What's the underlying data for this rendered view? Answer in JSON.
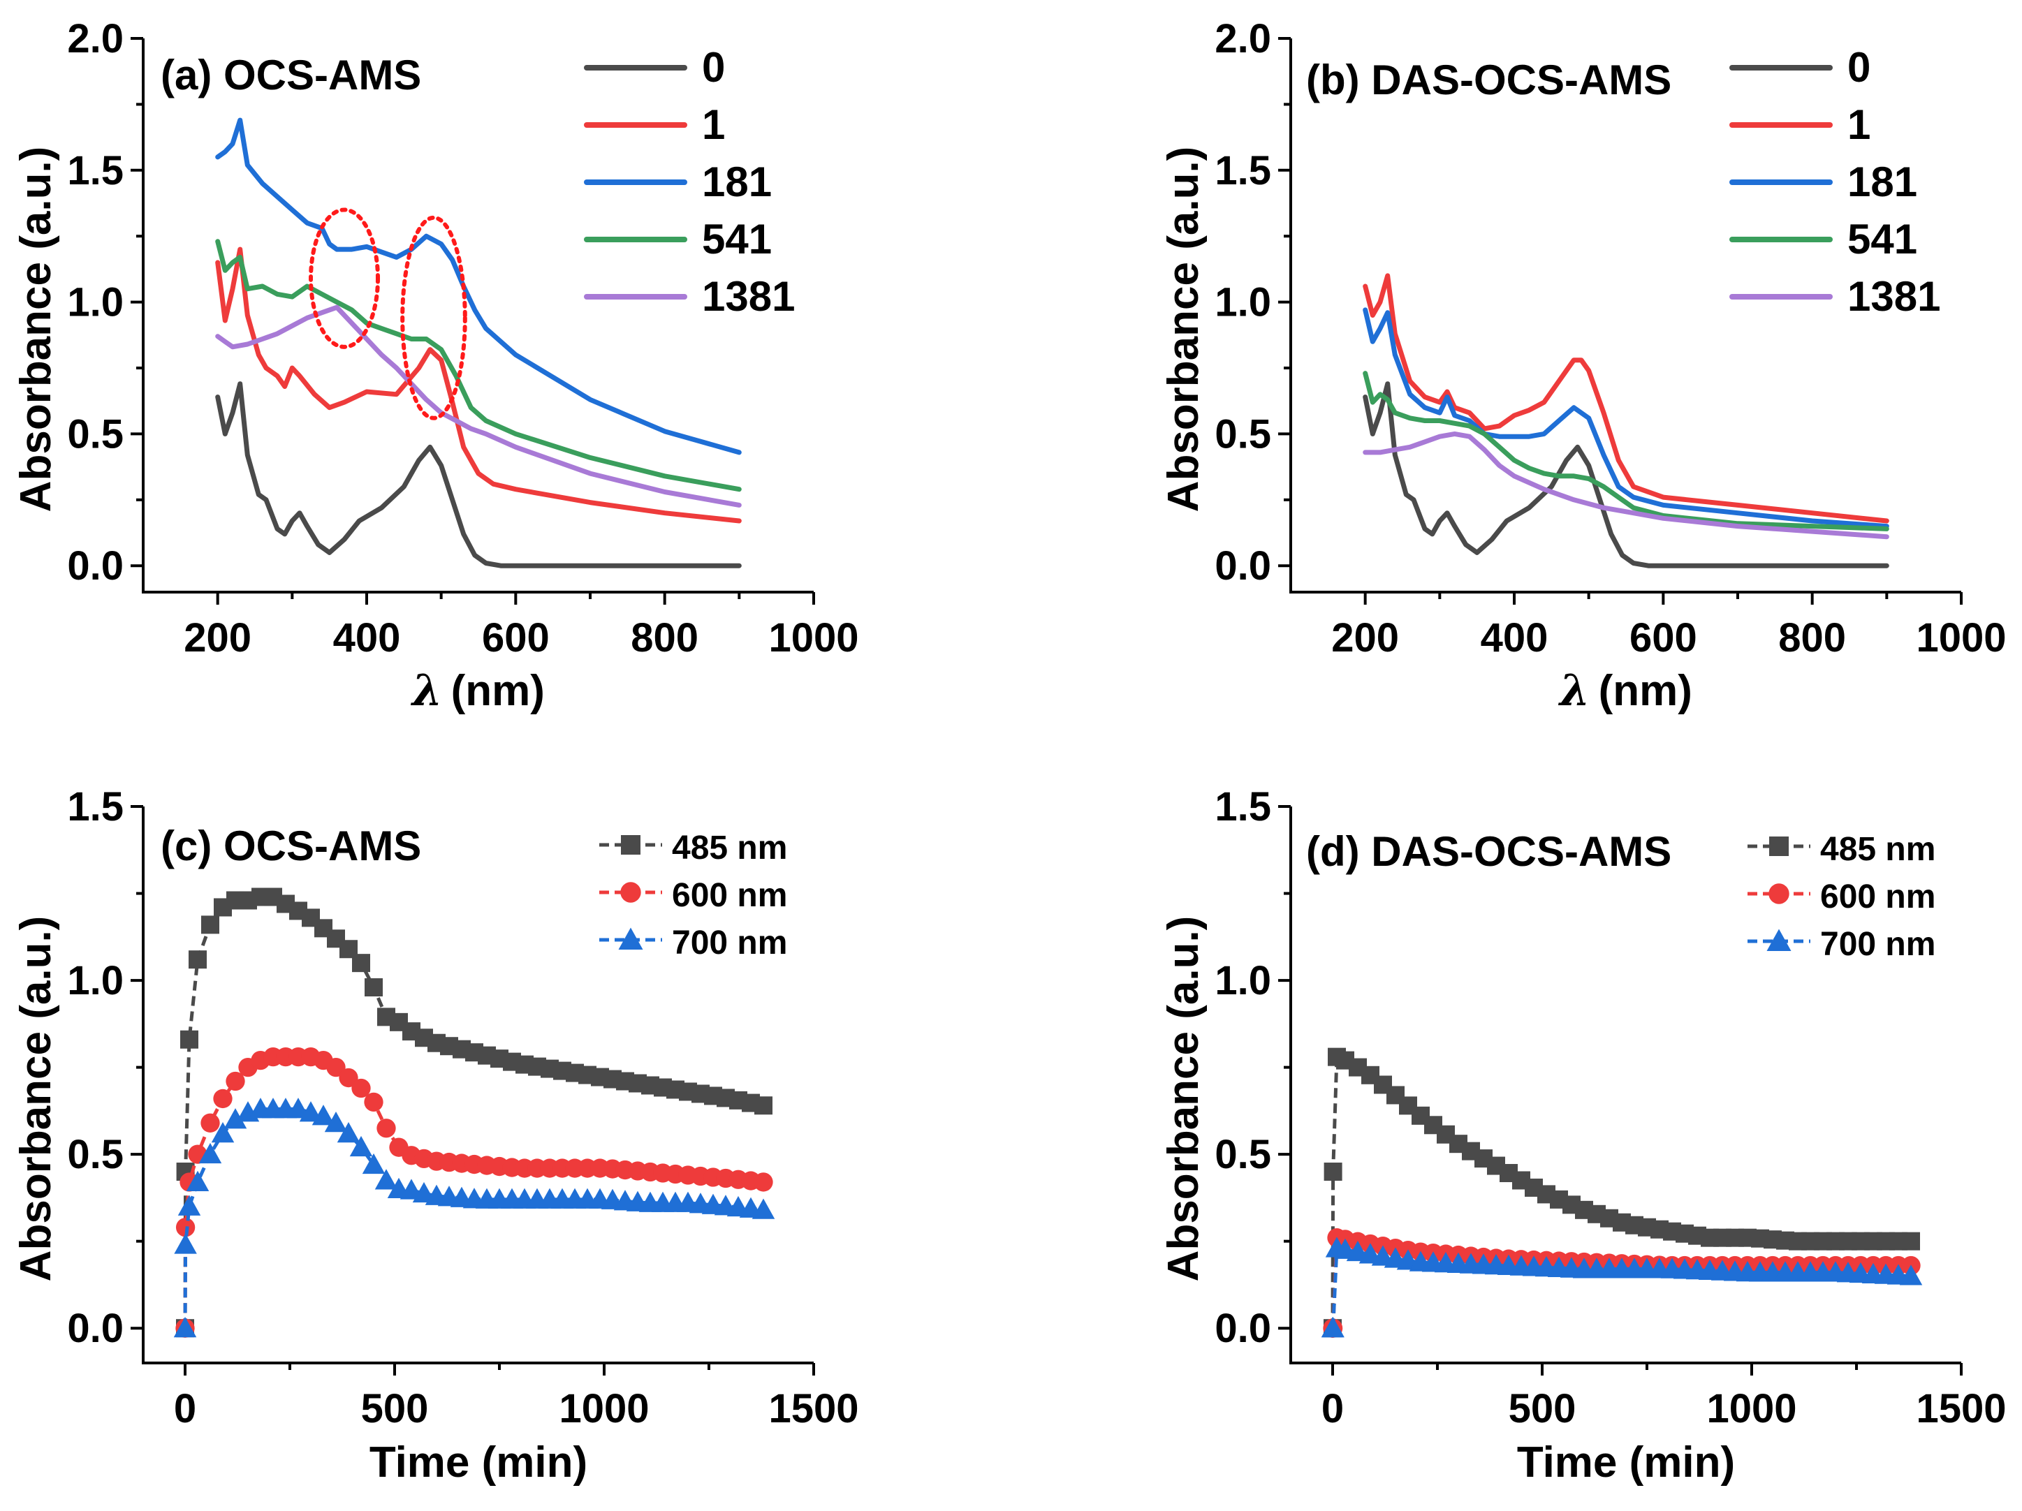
{
  "colors": {
    "gray": "#4a4a4a",
    "red": "#ee3b3b",
    "blue": "#1f6fd6",
    "green": "#3a9e5c",
    "purple": "#a87ad6",
    "ellipse": "#ff1a1a"
  },
  "chart_data": [
    {
      "id": "a",
      "type": "line",
      "panel_label": "(a) OCS-AMS",
      "xlabel_symbol": "λ",
      "xlabel_unit": "(nm)",
      "ylabel": "Absorbance (a.u.)",
      "xlim": [
        100,
        1000
      ],
      "ylim": [
        -0.1,
        2.0
      ],
      "xticks": [
        200,
        400,
        600,
        800,
        1000
      ],
      "xtick_labels": [
        "200",
        "400",
        "600",
        "800",
        "1000"
      ],
      "yticks": [
        0.0,
        0.5,
        1.0,
        1.5,
        2.0
      ],
      "ytick_labels": [
        "0.0",
        "0.5",
        "1.0",
        "1.5",
        "2.0"
      ],
      "legend_position": "top-right",
      "annotations": [
        {
          "type": "dotted-ellipse",
          "cx": 370,
          "cy": 1.09,
          "rx": 45,
          "ry": 0.26
        },
        {
          "type": "dotted-ellipse",
          "cx": 490,
          "cy": 0.94,
          "rx": 42,
          "ry": 0.38
        }
      ],
      "series": [
        {
          "name": "0",
          "color": "gray",
          "x": [
            200,
            210,
            220,
            230,
            240,
            255,
            265,
            280,
            290,
            300,
            310,
            320,
            335,
            350,
            370,
            390,
            420,
            450,
            470,
            485,
            500,
            515,
            530,
            545,
            560,
            580,
            600,
            700,
            800,
            900
          ],
          "y": [
            0.64,
            0.5,
            0.58,
            0.69,
            0.42,
            0.27,
            0.25,
            0.14,
            0.12,
            0.17,
            0.2,
            0.15,
            0.08,
            0.05,
            0.1,
            0.17,
            0.22,
            0.3,
            0.4,
            0.45,
            0.38,
            0.25,
            0.12,
            0.04,
            0.01,
            0.0,
            0.0,
            0.0,
            0.0,
            0.0
          ]
        },
        {
          "name": "1",
          "color": "red",
          "x": [
            200,
            210,
            220,
            230,
            240,
            255,
            265,
            280,
            290,
            300,
            310,
            330,
            350,
            370,
            400,
            440,
            470,
            485,
            500,
            515,
            530,
            550,
            570,
            600,
            700,
            800,
            900
          ],
          "y": [
            1.15,
            0.93,
            1.05,
            1.2,
            0.95,
            0.8,
            0.75,
            0.72,
            0.68,
            0.75,
            0.72,
            0.65,
            0.6,
            0.62,
            0.66,
            0.65,
            0.75,
            0.82,
            0.78,
            0.62,
            0.45,
            0.35,
            0.31,
            0.29,
            0.24,
            0.2,
            0.17
          ]
        },
        {
          "name": "181",
          "color": "blue",
          "x": [
            200,
            210,
            220,
            230,
            240,
            260,
            280,
            300,
            320,
            340,
            350,
            360,
            380,
            400,
            420,
            440,
            460,
            480,
            500,
            515,
            530,
            545,
            560,
            600,
            700,
            800,
            900
          ],
          "y": [
            1.55,
            1.57,
            1.6,
            1.69,
            1.52,
            1.45,
            1.4,
            1.35,
            1.3,
            1.28,
            1.22,
            1.2,
            1.2,
            1.21,
            1.19,
            1.17,
            1.2,
            1.25,
            1.22,
            1.16,
            1.06,
            0.97,
            0.9,
            0.8,
            0.63,
            0.51,
            0.43
          ]
        },
        {
          "name": "541",
          "color": "green",
          "x": [
            200,
            210,
            220,
            230,
            240,
            260,
            280,
            300,
            320,
            340,
            360,
            380,
            400,
            420,
            440,
            460,
            480,
            500,
            520,
            540,
            560,
            600,
            700,
            800,
            900
          ],
          "y": [
            1.23,
            1.12,
            1.15,
            1.17,
            1.05,
            1.06,
            1.03,
            1.02,
            1.06,
            1.03,
            1.0,
            0.97,
            0.92,
            0.9,
            0.88,
            0.86,
            0.86,
            0.82,
            0.72,
            0.6,
            0.55,
            0.5,
            0.41,
            0.34,
            0.29
          ]
        },
        {
          "name": "1381",
          "color": "purple",
          "x": [
            200,
            210,
            220,
            240,
            260,
            280,
            300,
            320,
            340,
            360,
            380,
            400,
            420,
            440,
            460,
            480,
            500,
            520,
            540,
            560,
            600,
            700,
            800,
            900
          ],
          "y": [
            0.87,
            0.85,
            0.83,
            0.84,
            0.86,
            0.88,
            0.91,
            0.94,
            0.96,
            0.98,
            0.92,
            0.86,
            0.8,
            0.75,
            0.69,
            0.63,
            0.58,
            0.55,
            0.52,
            0.5,
            0.45,
            0.35,
            0.28,
            0.23
          ]
        }
      ]
    },
    {
      "id": "b",
      "type": "line",
      "panel_label": "(b) DAS-OCS-AMS",
      "xlabel_symbol": "λ",
      "xlabel_unit": "(nm)",
      "ylabel": "Absorbance (a.u.)",
      "xlim": [
        100,
        1000
      ],
      "ylim": [
        -0.1,
        2.0
      ],
      "xticks": [
        200,
        400,
        600,
        800,
        1000
      ],
      "xtick_labels": [
        "200",
        "400",
        "600",
        "800",
        "1000"
      ],
      "yticks": [
        0.0,
        0.5,
        1.0,
        1.5,
        2.0
      ],
      "ytick_labels": [
        "0.0",
        "0.5",
        "1.0",
        "1.5",
        "2.0"
      ],
      "legend_position": "top-right",
      "series": [
        {
          "name": "0",
          "color": "gray",
          "x": [
            200,
            210,
            220,
            230,
            240,
            255,
            265,
            280,
            290,
            300,
            310,
            320,
            335,
            350,
            370,
            390,
            420,
            450,
            470,
            485,
            500,
            515,
            530,
            545,
            560,
            580,
            600,
            700,
            800,
            900
          ],
          "y": [
            0.64,
            0.5,
            0.58,
            0.69,
            0.42,
            0.27,
            0.25,
            0.14,
            0.12,
            0.17,
            0.2,
            0.15,
            0.08,
            0.05,
            0.1,
            0.17,
            0.22,
            0.3,
            0.4,
            0.45,
            0.38,
            0.25,
            0.12,
            0.04,
            0.01,
            0.0,
            0.0,
            0.0,
            0.0,
            0.0
          ]
        },
        {
          "name": "1",
          "color": "red",
          "x": [
            200,
            210,
            220,
            230,
            240,
            260,
            280,
            300,
            310,
            320,
            340,
            360,
            380,
            400,
            420,
            440,
            460,
            480,
            490,
            500,
            520,
            540,
            560,
            600,
            700,
            800,
            900
          ],
          "y": [
            1.06,
            0.95,
            1.0,
            1.1,
            0.88,
            0.7,
            0.64,
            0.62,
            0.66,
            0.6,
            0.58,
            0.52,
            0.53,
            0.57,
            0.59,
            0.62,
            0.7,
            0.78,
            0.78,
            0.74,
            0.58,
            0.4,
            0.3,
            0.26,
            0.23,
            0.2,
            0.17
          ]
        },
        {
          "name": "181",
          "color": "blue",
          "x": [
            200,
            210,
            220,
            230,
            240,
            260,
            280,
            300,
            310,
            320,
            340,
            360,
            380,
            400,
            420,
            440,
            460,
            480,
            500,
            520,
            540,
            560,
            600,
            700,
            800,
            900
          ],
          "y": [
            0.97,
            0.85,
            0.9,
            0.96,
            0.8,
            0.65,
            0.6,
            0.58,
            0.64,
            0.57,
            0.55,
            0.5,
            0.49,
            0.49,
            0.49,
            0.5,
            0.55,
            0.6,
            0.56,
            0.42,
            0.3,
            0.26,
            0.23,
            0.2,
            0.17,
            0.15
          ]
        },
        {
          "name": "541",
          "color": "green",
          "x": [
            200,
            210,
            220,
            230,
            240,
            260,
            280,
            300,
            320,
            340,
            360,
            380,
            400,
            420,
            440,
            460,
            480,
            500,
            520,
            540,
            560,
            600,
            700,
            800,
            900
          ],
          "y": [
            0.73,
            0.62,
            0.65,
            0.63,
            0.58,
            0.56,
            0.55,
            0.55,
            0.54,
            0.53,
            0.5,
            0.45,
            0.4,
            0.37,
            0.35,
            0.34,
            0.34,
            0.33,
            0.3,
            0.26,
            0.22,
            0.19,
            0.16,
            0.15,
            0.14
          ]
        },
        {
          "name": "1381",
          "color": "purple",
          "x": [
            200,
            220,
            240,
            260,
            280,
            300,
            320,
            340,
            360,
            380,
            400,
            440,
            480,
            520,
            560,
            600,
            700,
            800,
            900
          ],
          "y": [
            0.43,
            0.43,
            0.44,
            0.45,
            0.47,
            0.49,
            0.5,
            0.49,
            0.44,
            0.38,
            0.34,
            0.29,
            0.25,
            0.22,
            0.2,
            0.18,
            0.15,
            0.13,
            0.11
          ]
        }
      ]
    },
    {
      "id": "c",
      "type": "scatter-line",
      "panel_label": "(c) OCS-AMS",
      "xlabel": "Time (min)",
      "ylabel": "Absorbance (a.u.)",
      "xlim": [
        -100,
        1500
      ],
      "ylim": [
        -0.1,
        1.5
      ],
      "xticks": [
        0,
        500,
        1000,
        1500
      ],
      "xtick_labels": [
        "0",
        "500",
        "1000",
        "1500"
      ],
      "yticks": [
        0.0,
        0.5,
        1.0,
        1.5
      ],
      "ytick_labels": [
        "0.0",
        "0.5",
        "1.0",
        "1.5"
      ],
      "legend_position": "top-right",
      "series": [
        {
          "name": "485 nm",
          "color": "gray",
          "marker": "square",
          "anchors_x": [
            0,
            1,
            10,
            30,
            60,
            90,
            120,
            150,
            180,
            210,
            240,
            270,
            300,
            330,
            360,
            390,
            420,
            450,
            470,
            490,
            510,
            530,
            560,
            600,
            700,
            800,
            900,
            1000,
            1100,
            1200,
            1300,
            1381
          ],
          "anchors_y": [
            0.0,
            0.45,
            0.83,
            1.06,
            1.16,
            1.21,
            1.23,
            1.23,
            1.24,
            1.24,
            1.22,
            1.2,
            1.18,
            1.15,
            1.12,
            1.09,
            1.05,
            0.98,
            0.92,
            0.87,
            0.88,
            0.86,
            0.84,
            0.82,
            0.79,
            0.76,
            0.74,
            0.72,
            0.7,
            0.68,
            0.66,
            0.64
          ]
        },
        {
          "name": "600 nm",
          "color": "red",
          "marker": "circle",
          "anchors_x": [
            0,
            1,
            10,
            30,
            60,
            90,
            120,
            150,
            180,
            210,
            240,
            270,
            300,
            330,
            360,
            390,
            420,
            450,
            470,
            490,
            510,
            530,
            560,
            600,
            700,
            800,
            900,
            1000,
            1100,
            1200,
            1300,
            1381
          ],
          "anchors_y": [
            0.0,
            0.29,
            0.42,
            0.5,
            0.59,
            0.66,
            0.71,
            0.75,
            0.77,
            0.78,
            0.78,
            0.78,
            0.78,
            0.77,
            0.75,
            0.72,
            0.69,
            0.65,
            0.6,
            0.55,
            0.52,
            0.5,
            0.49,
            0.48,
            0.47,
            0.46,
            0.46,
            0.46,
            0.45,
            0.44,
            0.43,
            0.42
          ]
        },
        {
          "name": "700 nm",
          "color": "blue",
          "marker": "triangle",
          "anchors_x": [
            0,
            1,
            10,
            30,
            60,
            90,
            120,
            150,
            180,
            210,
            240,
            270,
            300,
            330,
            360,
            390,
            420,
            450,
            470,
            490,
            510,
            530,
            560,
            600,
            700,
            800,
            900,
            1000,
            1100,
            1200,
            1300,
            1381
          ],
          "anchors_y": [
            0.0,
            0.24,
            0.35,
            0.42,
            0.5,
            0.56,
            0.6,
            0.62,
            0.63,
            0.63,
            0.63,
            0.63,
            0.62,
            0.61,
            0.59,
            0.56,
            0.52,
            0.47,
            0.44,
            0.41,
            0.4,
            0.4,
            0.39,
            0.38,
            0.37,
            0.37,
            0.37,
            0.37,
            0.36,
            0.36,
            0.35,
            0.34
          ]
        }
      ]
    },
    {
      "id": "d",
      "type": "scatter-line",
      "panel_label": "(d) DAS-OCS-AMS",
      "xlabel": "Time (min)",
      "ylabel": "Absorbance (a.u.)",
      "xlim": [
        -100,
        1500
      ],
      "ylim": [
        -0.1,
        1.5
      ],
      "xticks": [
        0,
        500,
        1000,
        1500
      ],
      "xtick_labels": [
        "0",
        "500",
        "1000",
        "1500"
      ],
      "yticks": [
        0.0,
        0.5,
        1.0,
        1.5
      ],
      "ytick_labels": [
        "0.0",
        "0.5",
        "1.0",
        "1.5"
      ],
      "legend_position": "top-right",
      "series": [
        {
          "name": "485 nm",
          "color": "gray",
          "marker": "square",
          "anchors_x": [
            0,
            1,
            10,
            30,
            60,
            100,
            150,
            200,
            300,
            400,
            500,
            600,
            700,
            800,
            900,
            1000,
            1100,
            1200,
            1300,
            1381
          ],
          "anchors_y": [
            0.0,
            0.45,
            0.78,
            0.77,
            0.75,
            0.72,
            0.67,
            0.62,
            0.53,
            0.46,
            0.39,
            0.34,
            0.3,
            0.28,
            0.26,
            0.26,
            0.25,
            0.25,
            0.25,
            0.25
          ]
        },
        {
          "name": "600 nm",
          "color": "red",
          "marker": "circle",
          "anchors_x": [
            0,
            1,
            10,
            100,
            200,
            400,
            600,
            800,
            1000,
            1200,
            1381
          ],
          "anchors_y": [
            0.0,
            0.0,
            0.26,
            0.24,
            0.22,
            0.2,
            0.19,
            0.18,
            0.18,
            0.18,
            0.18
          ]
        },
        {
          "name": "700 nm",
          "color": "blue",
          "marker": "triangle",
          "anchors_x": [
            0,
            1,
            10,
            100,
            200,
            400,
            600,
            800,
            1000,
            1200,
            1381
          ],
          "anchors_y": [
            0.0,
            0.0,
            0.23,
            0.21,
            0.19,
            0.18,
            0.17,
            0.17,
            0.16,
            0.16,
            0.15
          ]
        }
      ]
    }
  ]
}
